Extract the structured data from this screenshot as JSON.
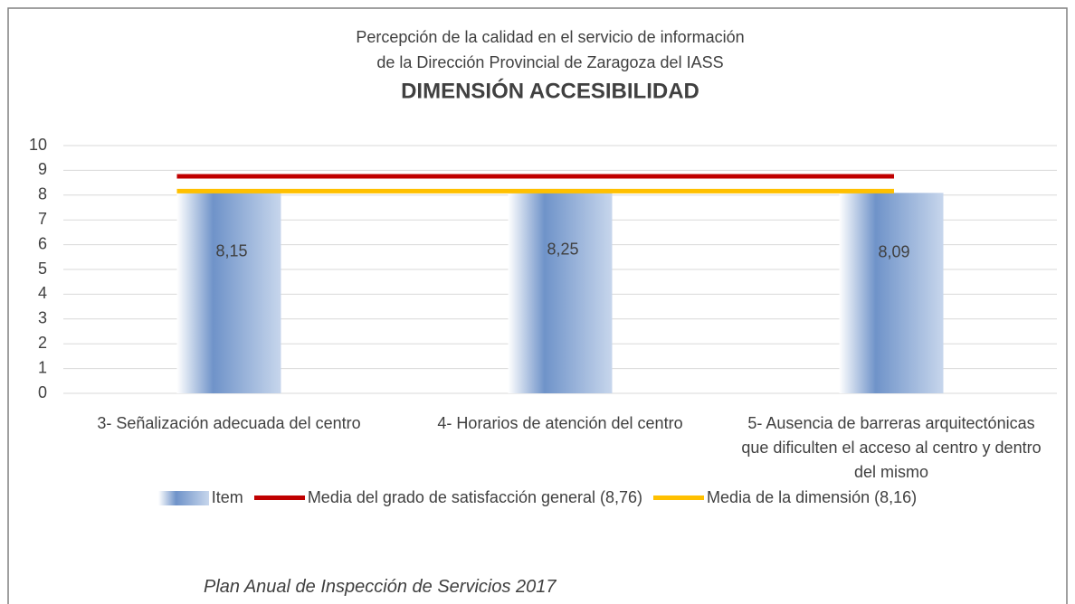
{
  "chart_data": {
    "type": "bar",
    "title": [
      "Percepción de la calidad en el servicio de información",
      "de la Dirección Provincial de Zaragoza del IASS"
    ],
    "subtitle": "DIMENSIÓN ACCESIBILIDAD",
    "categories": [
      "3- Señalización adecuada del centro",
      "4- Horarios de atención del centro",
      "5- Ausencia de barreras arquitectónicas que dificulten el acceso al centro y dentro del mismo"
    ],
    "series": [
      {
        "name": "Item",
        "type": "bar",
        "color": "#7e9fcf",
        "values": [
          8.15,
          8.25,
          8.09
        ],
        "value_labels": [
          "8,15",
          "8,25",
          "8,09"
        ]
      },
      {
        "name": "Media del grado de satisfacción general (8,76)",
        "type": "line",
        "color": "#c00000",
        "values": [
          8.76,
          8.76,
          8.76
        ]
      },
      {
        "name": "Media de la dimensión (8,16)",
        "type": "line",
        "color": "#ffc000",
        "values": [
          8.16,
          8.16,
          8.16
        ]
      }
    ],
    "ylim": [
      0,
      10
    ],
    "yticks": [
      0,
      1,
      2,
      3,
      4,
      5,
      6,
      7,
      8,
      9,
      10
    ],
    "grid": true,
    "legend": "bottom",
    "footer": "Plan Anual de Inspección de Servicios 2017"
  }
}
